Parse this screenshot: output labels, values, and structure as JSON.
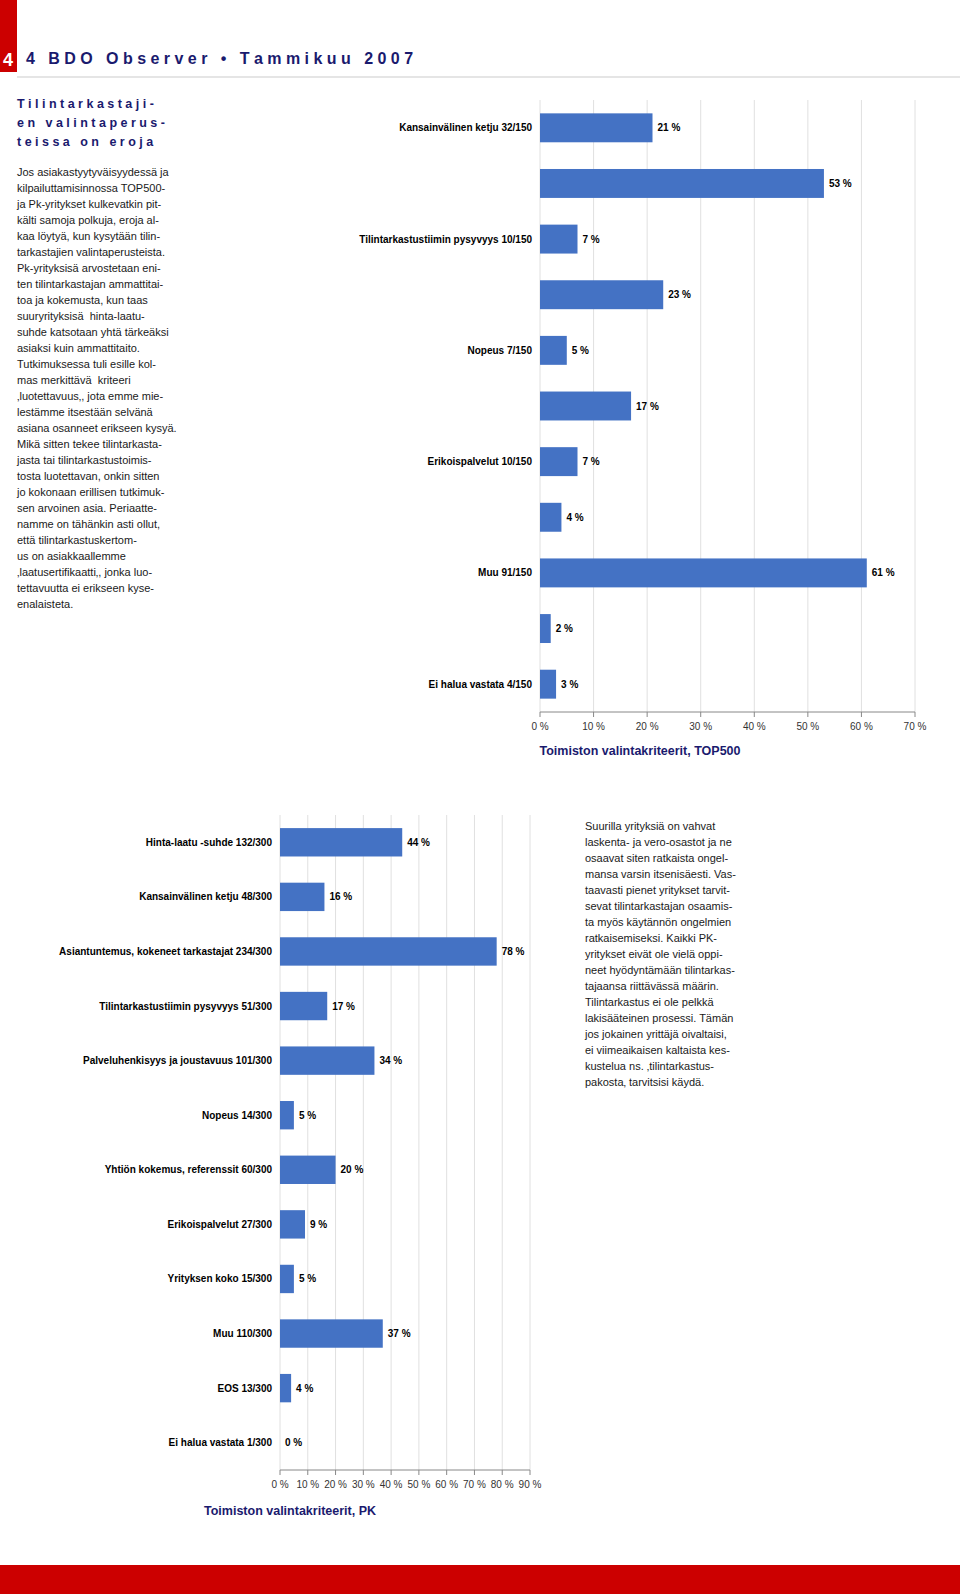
{
  "annotations": [
    "4",
    "4   B D O   O b s e r v e r   •   T a m m i k u u   2 0 0 7",
    "T i l i n t a r k a s t a j i -",
    "e n   v a l i n t a p e r u s -",
    "t e i s s a   o n   e r o j a",
    "Jos asiakastyytyväisyydessä ja\nkilpailuttamisinnossa TOP500-\nja Pk-yritykset kulkevatkin pit-\nkälti samoja polkuja, eroja al-\nkaa löytyä, kun kysytään tilin-\ntarkastajien valintaperusteista.\n\nPk-yrityksisä arvostetaan eni-\nten tilintarkastajan ammattitai-\ntoa ja kokemusta, kun taas\nsuuryrityksisä  hinta-laatu-\nsuhde katsotaan yhtä tärkeäksi\nasiaksi kuin ammattitaito.\n\nTutkimuksessa tuli esille kol-\nmas merkittävä  kriteeri\n‚luotettavuus‚, jota emme mie-\nlestämme itsestään selvänä\nasiana osanneet erikseen kysyä.\nMikä sitten tekee tilintarkasta-\njasta tai tilintarkastustoimis-\ntosta luotettavan, onkin sitten\njo kokonaan erillisen tutkimuk-\nsen arvoinen asia. Periaatte-\nnamme on tähänkin asti ollut,\nettä tilintarkastuskertom-\nus on asiakkaallemme\n‚laatusertiﬁkaatti‚, jonka luo-\ntettavuutta ei erikseen kyse-\nenalaisteta.",
    "Suurilla yrityksiä on vahvat\nlaskenta- ja vero-osastot ja ne\nosaavat siten ratkaista ongel-\nmansa varsin itsenisäesti. Vas-\ntaavasti pienet yritykset tarvit-\nsevat tilintarkastajan osaamis-\nta myös käytännön ongelmien\nratkaisemiseksi. Kaikki PK-\nyritykset eivät ole vielä oppi-\nneet hyödyntämään tilintarkas-\ntajaansa riittävässä määrin.\nTilintarkastus ei ole pelkkä\nlakisääteinen prosessi. Tämän\njos jokainen yrittäjä oivaltaisi,\nei viimeaikaisen kaltaista kes-\nkustelua ns. ‚tilintarkastus-\npakosta‚ tarvitsisi käydä."
  ],
  "chart_data": [
    {
      "type": "bar",
      "orientation": "horizontal",
      "title": "Toimiston valintakriteerit, TOP500",
      "categories": [
        "Kansainvälinen ketju 32/150",
        null,
        "Tilintarkastustiimin pysyvyys 10/150",
        null,
        "Nopeus 7/150",
        null,
        "Erikoispalvelut 10/150",
        null,
        "Muu 91/150",
        null,
        "Ei halua vastata 4/150"
      ],
      "values": [
        21,
        53,
        7,
        23,
        5,
        17,
        7,
        4,
        61,
        2,
        3
      ],
      "value_labels": [
        "21 %",
        "53 %",
        "7 %",
        "23 %",
        "5 %",
        "17 %",
        "7 %",
        "4 %",
        "61 %",
        "2 %",
        "3 %"
      ],
      "data_labels": true,
      "color": "#4472c4",
      "xlim": [
        0,
        70
      ],
      "xticks": [
        {
          "value": 0,
          "label": "0 %"
        },
        {
          "value": 10,
          "label": "10 %"
        },
        {
          "value": 20,
          "label": "20 %"
        },
        {
          "value": 30,
          "label": "30 %"
        },
        {
          "value": 40,
          "label": "40 %"
        },
        {
          "value": 50,
          "label": "50 %"
        },
        {
          "value": 60,
          "label": "60 %"
        },
        {
          "value": 70,
          "label": "70 %"
        }
      ],
      "grid": true
    },
    {
      "type": "bar",
      "orientation": "horizontal",
      "title": "Toimiston valintakriteerit, PK",
      "categories": [
        "Hinta-laatu -suhde 132/300",
        "Kansainvälinen ketju 48/300",
        "Asiantuntemus, kokeneet tarkastajat 234/300",
        "Tilintarkastustiimin pysyvyys 51/300",
        "Palveluhenkisyys ja joustavuus 101/300",
        "Nopeus 14/300",
        "Yhtiön kokemus, referenssit 60/300",
        "Erikoispalvelut 27/300",
        "Yrityksen koko 15/300",
        "Muu 110/300",
        "EOS 13/300",
        "Ei halua vastata 1/300"
      ],
      "values": [
        44,
        16,
        78,
        17,
        34,
        5,
        20,
        9,
        5,
        37,
        4,
        0
      ],
      "value_labels": [
        "44 %",
        "16 %",
        "78 %",
        "17 %",
        "34 %",
        "5 %",
        "20 %",
        "9 %",
        "5 %",
        "37 %",
        "4 %",
        "0 %"
      ],
      "data_labels": true,
      "color": "#4472c4",
      "xlim": [
        0,
        90
      ],
      "xticks": [
        {
          "value": 0,
          "label": "0 %"
        },
        {
          "value": 10,
          "label": "10 %"
        },
        {
          "value": 20,
          "label": "20 %"
        },
        {
          "value": 30,
          "label": "30 %"
        },
        {
          "value": 40,
          "label": "40 %"
        },
        {
          "value": 50,
          "label": "50 %"
        },
        {
          "value": 60,
          "label": "60 %"
        },
        {
          "value": 70,
          "label": "70 %"
        },
        {
          "value": 80,
          "label": "80 %"
        },
        {
          "value": 90,
          "label": "90 %"
        }
      ],
      "grid": true
    }
  ]
}
